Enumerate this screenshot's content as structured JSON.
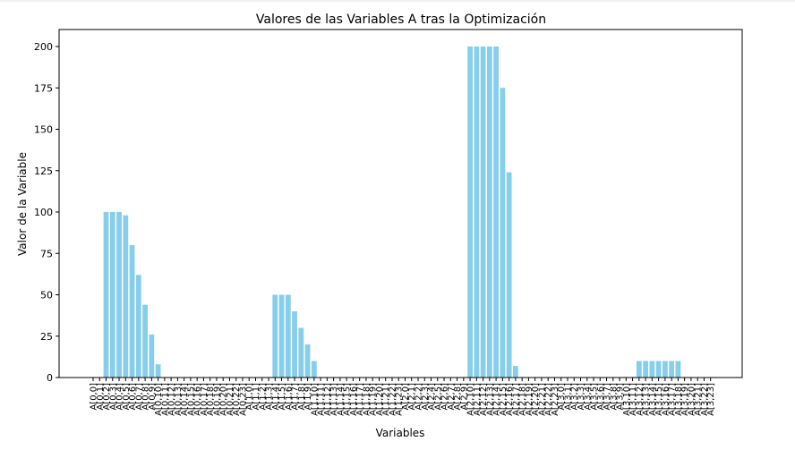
{
  "chart_data": {
    "type": "bar",
    "title": "Valores de las Variables A tras la Optimización",
    "xlabel": "Variables",
    "ylabel": "Valor de la Variable",
    "ylim": [
      0,
      210
    ],
    "yticks": [
      0,
      25,
      50,
      75,
      100,
      125,
      150,
      175,
      200
    ],
    "bar_color": "#87ceeb",
    "grid": false,
    "categories": [
      "A[0,0]",
      "A[0,1]",
      "A[0,2]",
      "A[0,3]",
      "A[0,4]",
      "A[0,5]",
      "A[0,6]",
      "A[0,7]",
      "A[0,8]",
      "A[0,9]",
      "A[0,10]",
      "A[0,11]",
      "A[0,12]",
      "A[0,13]",
      "A[0,14]",
      "A[0,15]",
      "A[0,16]",
      "A[0,17]",
      "A[0,18]",
      "A[0,19]",
      "A[0,20]",
      "A[0,21]",
      "A[0,22]",
      "A[0,23]",
      "A[1,0]",
      "A[1,1]",
      "A[1,2]",
      "A[1,3]",
      "A[1,4]",
      "A[1,5]",
      "A[1,6]",
      "A[1,7]",
      "A[1,8]",
      "A[1,9]",
      "A[1,10]",
      "A[1,11]",
      "A[1,12]",
      "A[1,13]",
      "A[1,14]",
      "A[1,15]",
      "A[1,16]",
      "A[1,17]",
      "A[1,18]",
      "A[1,19]",
      "A[1,20]",
      "A[1,21]",
      "A[1,22]",
      "A[1,23]",
      "A[2,0]",
      "A[2,1]",
      "A[2,2]",
      "A[2,3]",
      "A[2,4]",
      "A[2,5]",
      "A[2,6]",
      "A[2,7]",
      "A[2,8]",
      "A[2,9]",
      "A[2,10]",
      "A[2,11]",
      "A[2,12]",
      "A[2,13]",
      "A[2,14]",
      "A[2,15]",
      "A[2,16]",
      "A[2,17]",
      "A[2,18]",
      "A[2,19]",
      "A[2,20]",
      "A[2,21]",
      "A[2,22]",
      "A[2,23]",
      "A[3,0]",
      "A[3,1]",
      "A[3,2]",
      "A[3,3]",
      "A[3,4]",
      "A[3,5]",
      "A[3,6]",
      "A[3,7]",
      "A[3,8]",
      "A[3,9]",
      "A[3,10]",
      "A[3,11]",
      "A[3,12]",
      "A[3,13]",
      "A[3,14]",
      "A[3,15]",
      "A[3,16]",
      "A[3,17]",
      "A[3,18]",
      "A[3,19]",
      "A[3,20]",
      "A[3,21]",
      "A[3,22]",
      "A[3,23]"
    ],
    "values": [
      0,
      0,
      100,
      100,
      100,
      98,
      80,
      62,
      44,
      26,
      8,
      0,
      0,
      0,
      0,
      0,
      0,
      0,
      0,
      0,
      0,
      0,
      0,
      0,
      0,
      0,
      0,
      0,
      50,
      50,
      50,
      40,
      30,
      20,
      10,
      0,
      0,
      0,
      0,
      0,
      0,
      0,
      0,
      0,
      0,
      0,
      0,
      0,
      0,
      0,
      0,
      0,
      0,
      0,
      0,
      0,
      0,
      0,
      200,
      200,
      200,
      200,
      200,
      175,
      124,
      7,
      0,
      0,
      0,
      0,
      0,
      0,
      0,
      0,
      0,
      0,
      0,
      0,
      0,
      0,
      0,
      0,
      0,
      0,
      10,
      10,
      10,
      10,
      10,
      10,
      10,
      0,
      0,
      0,
      0,
      0
    ]
  }
}
